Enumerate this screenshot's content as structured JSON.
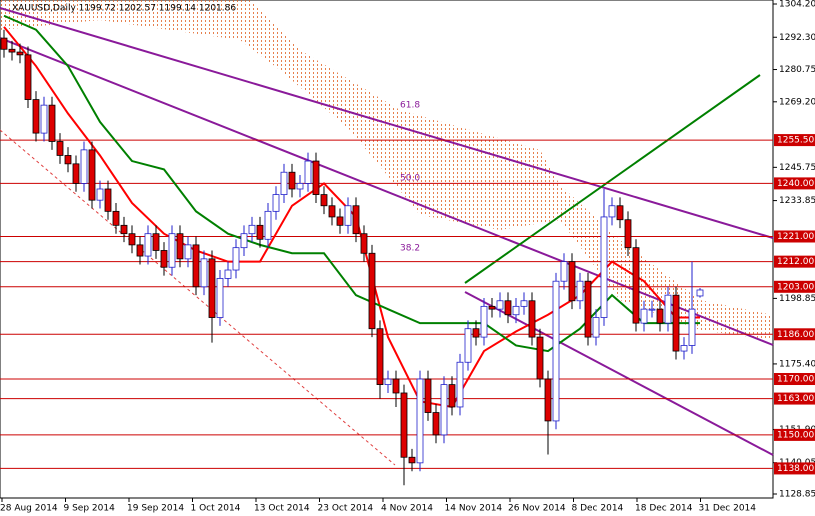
{
  "chart_data": {
    "type": "candlestick",
    "title": "XAUUSD,Daily  1199.72 1202.57 1199.14 1201.86",
    "ylim": [
      1128.85,
      1304.2
    ],
    "yticks": [
      {
        "value": 1304.2,
        "label": "1304.20"
      },
      {
        "value": 1292.3,
        "label": "1292.30"
      },
      1280.75,
      {
        "value": 1269.2,
        "label": "1269.20"
      },
      1245.75,
      1233.85,
      1198.85,
      {
        "value": 1175.4,
        "label": "1175.40"
      },
      {
        "value": 1151.9,
        "label": "1151.90"
      },
      1140.05,
      1128.85
    ],
    "dates": [
      "28 Aug 2014",
      "9 Sep 2014",
      "19 Sep 2014",
      "1 Oct 2014",
      "13 Oct 2014",
      "23 Oct 2014",
      "4 Nov 2014",
      "14 Nov 2014",
      "26 Nov 2014",
      "8 Dec 2014",
      "18 Dec 2014",
      "31 Dec 2014"
    ],
    "open": [
      1292,
      1288,
      1287,
      1286,
      1270,
      1258,
      1268,
      1255,
      1250,
      1247,
      1240,
      1252,
      1234,
      1238,
      1230,
      1225,
      1222,
      1218,
      1214,
      1222,
      1216,
      1210,
      1222,
      1213,
      1218,
      1203,
      1213,
      1192,
      1206,
      1209,
      1217,
      1222,
      1225,
      1220,
      1230,
      1236,
      1244,
      1238,
      1240,
      1248,
      1236,
      1232,
      1228,
      1225,
      1232,
      1222,
      1215,
      1188,
      1168,
      1170,
      1165,
      1142,
      1140,
      1170,
      1158,
      1150,
      1168,
      1160,
      1176,
      1188,
      1185,
      1196,
      1195,
      1198,
      1193,
      1196,
      1198,
      1185,
      1170,
      1155,
      1205,
      1212,
      1198,
      1205,
      1185,
      1192,
      1228,
      1232,
      1227,
      1217,
      1190,
      1195,
      1195,
      1190,
      1200,
      1180,
      1182,
      1199.72
    ],
    "high": [
      1295,
      1291,
      1290,
      1289,
      1273,
      1271,
      1271,
      1258,
      1253,
      1250,
      1255,
      1255,
      1241,
      1241,
      1233,
      1228,
      1225,
      1221,
      1225,
      1225,
      1219,
      1225,
      1225,
      1221,
      1221,
      1216,
      1216,
      1209,
      1212,
      1220,
      1225,
      1228,
      1228,
      1233,
      1239,
      1247,
      1247,
      1243,
      1251,
      1251,
      1239,
      1235,
      1231,
      1235,
      1235,
      1225,
      1218,
      1191,
      1173,
      1173,
      1168,
      1145,
      1173,
      1173,
      1161,
      1171,
      1171,
      1179,
      1191,
      1191,
      1199,
      1199,
      1201,
      1201,
      1199,
      1201,
      1201,
      1188,
      1173,
      1208,
      1215,
      1215,
      1208,
      1208,
      1195,
      1238,
      1235,
      1235,
      1230,
      1220,
      1198,
      1198,
      1198,
      1203,
      1203,
      1185,
      1212,
      1202.57
    ],
    "low": [
      1285,
      1284,
      1283,
      1267,
      1255,
      1255,
      1252,
      1247,
      1244,
      1237,
      1237,
      1231,
      1231,
      1227,
      1222,
      1219,
      1215,
      1211,
      1211,
      1213,
      1207,
      1207,
      1210,
      1210,
      1200,
      1200,
      1183,
      1189,
      1203,
      1206,
      1214,
      1219,
      1217,
      1217,
      1227,
      1233,
      1235,
      1235,
      1237,
      1233,
      1229,
      1225,
      1222,
      1222,
      1219,
      1212,
      1185,
      1163,
      1165,
      1160,
      1132,
      1137,
      1137,
      1155,
      1147,
      1147,
      1157,
      1157,
      1173,
      1182,
      1182,
      1192,
      1192,
      1190,
      1190,
      1193,
      1182,
      1167,
      1143,
      1152,
      1202,
      1195,
      1195,
      1182,
      1182,
      1189,
      1225,
      1224,
      1214,
      1187,
      1187,
      1192,
      1187,
      1187,
      1177,
      1177,
      1179,
      1199.14
    ],
    "close": [
      1288,
      1287,
      1286,
      1270,
      1258,
      1268,
      1255,
      1250,
      1247,
      1240,
      1252,
      1234,
      1238,
      1230,
      1225,
      1222,
      1218,
      1214,
      1222,
      1216,
      1210,
      1222,
      1213,
      1218,
      1203,
      1213,
      1192,
      1206,
      1209,
      1217,
      1222,
      1225,
      1220,
      1230,
      1236,
      1244,
      1238,
      1240,
      1248,
      1236,
      1232,
      1228,
      1225,
      1232,
      1222,
      1215,
      1188,
      1168,
      1170,
      1165,
      1142,
      1140,
      1170,
      1158,
      1150,
      1168,
      1160,
      1176,
      1188,
      1185,
      1196,
      1195,
      1198,
      1193,
      1196,
      1198,
      1185,
      1170,
      1155,
      1205,
      1212,
      1198,
      1205,
      1185,
      1192,
      1228,
      1232,
      1227,
      1217,
      1190,
      1195,
      1195,
      1190,
      1200,
      1180,
      1182,
      1195,
      1201.86
    ],
    "up_color": "#2222cc",
    "down_color": "#dd0000",
    "lines": [
      {
        "color": "#ff0000",
        "x": [
          0,
          4,
          8,
          12,
          16,
          20,
          24,
          28,
          32,
          36,
          40,
          44,
          48,
          52,
          56,
          60,
          64,
          68,
          72,
          76,
          80,
          84,
          87
        ],
        "values": [
          1296,
          1282,
          1265,
          1250,
          1233,
          1222,
          1216,
          1212,
          1212,
          1232,
          1240,
          1228,
          1185,
          1162,
          1160,
          1180,
          1187,
          1193,
          1200,
          1212,
          1205,
          1192,
          1192
        ]
      },
      {
        "color": "#008000",
        "x": [
          0,
          4,
          8,
          12,
          16,
          20,
          24,
          28,
          32,
          36,
          40,
          44,
          48,
          52,
          56,
          60,
          64,
          68,
          72,
          76,
          80,
          84,
          87
        ],
        "values": [
          1300,
          1295,
          1282,
          1262,
          1248,
          1245,
          1230,
          1222,
          1218,
          1215,
          1215,
          1200,
          1195,
          1190,
          1190,
          1190,
          1182,
          1180,
          1188,
          1200,
          1190,
          1190,
          1190
        ]
      }
    ],
    "levels": [
      {
        "value": 1255.5,
        "label": "1255.50"
      },
      {
        "value": 1240,
        "label": "1240.00"
      },
      {
        "value": 1221,
        "label": "1221.00"
      },
      {
        "value": 1212,
        "label": "1212.00"
      },
      {
        "value": 1203,
        "label": "1203.00"
      },
      {
        "value": 1186,
        "label": "1186.00"
      },
      {
        "value": 1170,
        "label": "1170.00"
      },
      {
        "value": 1163,
        "label": "1163.00"
      },
      {
        "value": 1150,
        "label": "1150.00"
      },
      {
        "value": 1138,
        "label": "1138.00"
      }
    ],
    "level_color": "#cc0000",
    "annotations": [
      "61.8",
      "50.0",
      "38.2"
    ]
  }
}
